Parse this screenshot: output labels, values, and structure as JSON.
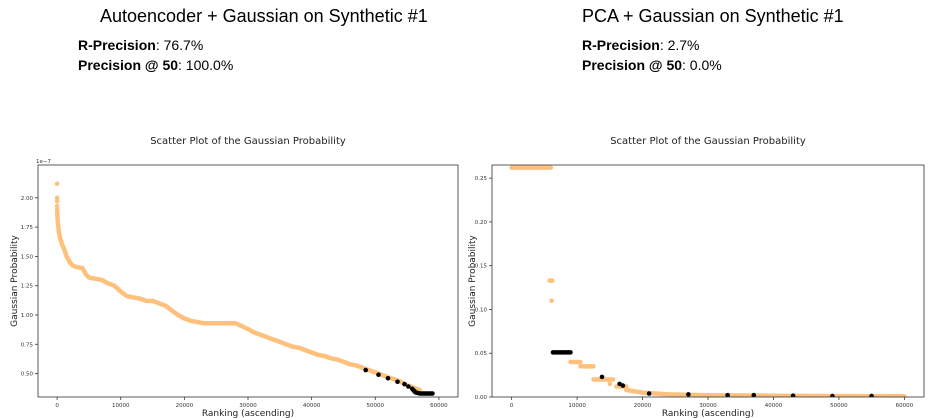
{
  "panels": [
    {
      "heading": "Autoencoder + Gaussian on Synthetic #1",
      "metrics": [
        {
          "label": "R-Precision",
          "value": ": 76.7%"
        },
        {
          "label": "Precision @ 50",
          "value": ": 100.0%"
        }
      ]
    },
    {
      "heading": "PCA + Gaussian on Synthetic #1",
      "metrics": [
        {
          "label": "R-Precision",
          "value": ": 2.7%"
        },
        {
          "label": "Precision @ 50",
          "value": ": 0.0%"
        }
      ]
    }
  ],
  "colors": {
    "normal": "#fdc17d",
    "anomaly": "#000000"
  },
  "chart_data": [
    {
      "type": "scatter",
      "title": "Scatter Plot of the Gaussian Probability",
      "xlabel": "Ranking (ascending)",
      "ylabel": "Gaussian Probability",
      "y_multiplier": "1e−7",
      "xlim": [
        -3000,
        63000
      ],
      "ylim": [
        0.3,
        2.28
      ],
      "xticks": [
        0,
        10000,
        20000,
        30000,
        40000,
        50000,
        60000
      ],
      "xtick_labels": [
        "0",
        "10000",
        "20000",
        "30000",
        "40000",
        "50000",
        "60000"
      ],
      "yticks": [
        0.5,
        0.75,
        1.0,
        1.25,
        1.5,
        1.75,
        2.0
      ],
      "ytick_labels": [
        "0.50",
        "0.75",
        "1.00",
        "1.25",
        "1.50",
        "1.75",
        "2.00"
      ],
      "series": [
        {
          "role": "normal",
          "segments": [
            {
              "x": [
                0,
                50,
                100,
                200,
                300,
                500,
                800,
                1200,
                1500,
                2000,
                2500,
                3000,
                4000,
                4500,
                5000,
                6000,
                7000,
                8000,
                9000,
                10000,
                11000,
                12000,
                13000,
                14000,
                15000,
                16000,
                17000,
                18000,
                19000,
                20000,
                21000,
                22000,
                23000,
                25000,
                27000,
                28000,
                30000,
                31000,
                32000,
                33000,
                34000,
                35000,
                36000,
                37000,
                38000,
                39000,
                40000,
                41000,
                42000,
                43000,
                44000,
                45000,
                46000,
                47000,
                48000,
                49000,
                50000,
                51000,
                52000,
                53000,
                54000,
                55000,
                56000,
                57000
              ],
              "y": [
                1.9,
                1.85,
                1.8,
                1.75,
                1.7,
                1.65,
                1.6,
                1.55,
                1.5,
                1.45,
                1.42,
                1.41,
                1.4,
                1.35,
                1.32,
                1.31,
                1.3,
                1.27,
                1.25,
                1.2,
                1.16,
                1.15,
                1.14,
                1.12,
                1.12,
                1.1,
                1.08,
                1.04,
                1.0,
                0.97,
                0.95,
                0.94,
                0.93,
                0.93,
                0.93,
                0.93,
                0.88,
                0.85,
                0.83,
                0.81,
                0.79,
                0.77,
                0.75,
                0.73,
                0.72,
                0.7,
                0.68,
                0.66,
                0.65,
                0.63,
                0.62,
                0.6,
                0.58,
                0.57,
                0.55,
                0.53,
                0.51,
                0.49,
                0.47,
                0.45,
                0.43,
                0.4,
                0.38,
                0.36
              ]
            }
          ],
          "points": [
            {
              "x": 0,
              "y": 2.12
            },
            {
              "x": 0,
              "y": 2.0
            },
            {
              "x": 0,
              "y": 1.97
            },
            {
              "x": 0,
              "y": 1.93
            }
          ]
        },
        {
          "role": "anomaly",
          "segments": [
            {
              "x": [
                55800,
                56300,
                57000,
                59000
              ],
              "y": [
                0.37,
                0.34,
                0.33,
                0.33
              ]
            }
          ],
          "points": [
            {
              "x": 48500,
              "y": 0.53
            },
            {
              "x": 50500,
              "y": 0.49
            },
            {
              "x": 52000,
              "y": 0.46
            },
            {
              "x": 53500,
              "y": 0.43
            },
            {
              "x": 54600,
              "y": 0.41
            },
            {
              "x": 55200,
              "y": 0.39
            }
          ]
        }
      ]
    },
    {
      "type": "scatter",
      "title": "Scatter Plot of the Gaussian Probability",
      "xlabel": "Ranking (ascending)",
      "ylabel": "Gaussian Probability",
      "xlim": [
        -3000,
        63000
      ],
      "ylim": [
        0.0,
        0.265
      ],
      "xticks": [
        0,
        10000,
        20000,
        30000,
        40000,
        50000,
        60000
      ],
      "xtick_labels": [
        "0",
        "10000",
        "20000",
        "30000",
        "40000",
        "50000",
        "60000"
      ],
      "yticks": [
        0.0,
        0.05,
        0.1,
        0.15,
        0.2,
        0.25
      ],
      "ytick_labels": [
        "0.00",
        "0.05",
        "0.10",
        "0.15",
        "0.20",
        "0.25"
      ],
      "series": [
        {
          "role": "normal",
          "segments": [
            {
              "x": [
                0,
                6000
              ],
              "y": [
                0.262,
                0.262
              ]
            },
            {
              "x": [
                9000,
                10500
              ],
              "y": [
                0.04,
                0.04
              ]
            },
            {
              "x": [
                10500,
                12500
              ],
              "y": [
                0.035,
                0.035
              ]
            },
            {
              "x": [
                12500,
                15500
              ],
              "y": [
                0.02,
                0.02
              ]
            },
            {
              "x": [
                16000,
                17500
              ],
              "y": [
                0.012,
                0.012
              ]
            },
            {
              "x": [
                17500,
                20000,
                24000,
                30000,
                40000,
                50000,
                60000
              ],
              "y": [
                0.008,
                0.005,
                0.003,
                0.002,
                0.0015,
                0.001,
                0.0008
              ]
            }
          ],
          "points": [
            {
              "x": 5800,
              "y": 0.133
            },
            {
              "x": 6000,
              "y": 0.133
            },
            {
              "x": 6200,
              "y": 0.133
            },
            {
              "x": 6100,
              "y": 0.11
            },
            {
              "x": 14000,
              "y": 0.02
            },
            {
              "x": 15000,
              "y": 0.015
            }
          ]
        },
        {
          "role": "anomaly",
          "segments": [
            {
              "x": [
                6300,
                9000
              ],
              "y": [
                0.051,
                0.051
              ]
            }
          ],
          "points": [
            {
              "x": 13800,
              "y": 0.023
            },
            {
              "x": 16500,
              "y": 0.015
            },
            {
              "x": 17000,
              "y": 0.013
            },
            {
              "x": 21000,
              "y": 0.004
            },
            {
              "x": 27000,
              "y": 0.003
            },
            {
              "x": 33000,
              "y": 0.002
            },
            {
              "x": 37000,
              "y": 0.002
            },
            {
              "x": 43000,
              "y": 0.0015
            },
            {
              "x": 49000,
              "y": 0.001
            },
            {
              "x": 55000,
              "y": 0.001
            }
          ]
        }
      ]
    }
  ]
}
